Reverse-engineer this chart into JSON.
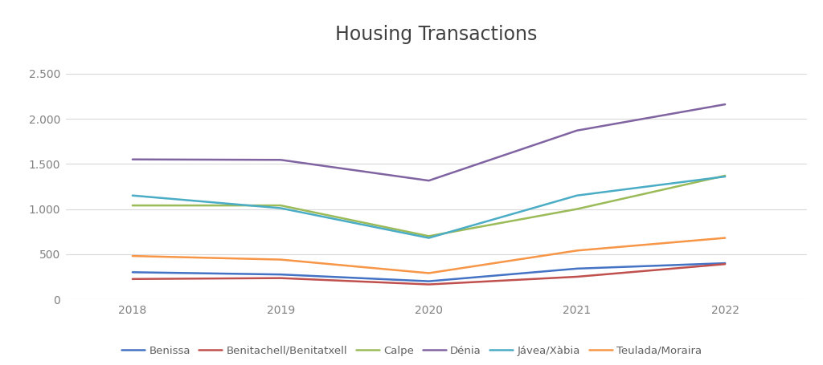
{
  "title": "Housing Transactions",
  "years": [
    2018,
    2019,
    2020,
    2021,
    2022
  ],
  "series": {
    "Benissa": {
      "values": [
        300,
        275,
        200,
        340,
        400
      ],
      "color": "#4472C4"
    },
    "Benitachell/Benitatxell": {
      "values": [
        225,
        235,
        165,
        250,
        390
      ],
      "color": "#C0504D"
    },
    "Calpe": {
      "values": [
        1040,
        1040,
        700,
        1000,
        1370
      ],
      "color": "#9BBB59"
    },
    "Dénia": {
      "values": [
        1550,
        1545,
        1315,
        1870,
        2160
      ],
      "color": "#8064A2"
    },
    "Jávea/Xàbia": {
      "values": [
        1150,
        1010,
        680,
        1150,
        1360
      ],
      "color": "#4BACC6"
    },
    "Teulada/Moraira": {
      "values": [
        480,
        440,
        290,
        540,
        680
      ],
      "color": "#F79646"
    }
  },
  "ylim": [
    0,
    2750
  ],
  "yticks": [
    0,
    500,
    1000,
    1500,
    2000,
    2500
  ],
  "ytick_labels": [
    "0",
    "500",
    "1.000",
    "1.500",
    "2.000",
    "2.500"
  ],
  "background_color": "#FFFFFF",
  "grid_color": "#D9D9D9",
  "title_fontsize": 17,
  "tick_fontsize": 10,
  "legend_fontsize": 9.5,
  "line_width": 1.8
}
